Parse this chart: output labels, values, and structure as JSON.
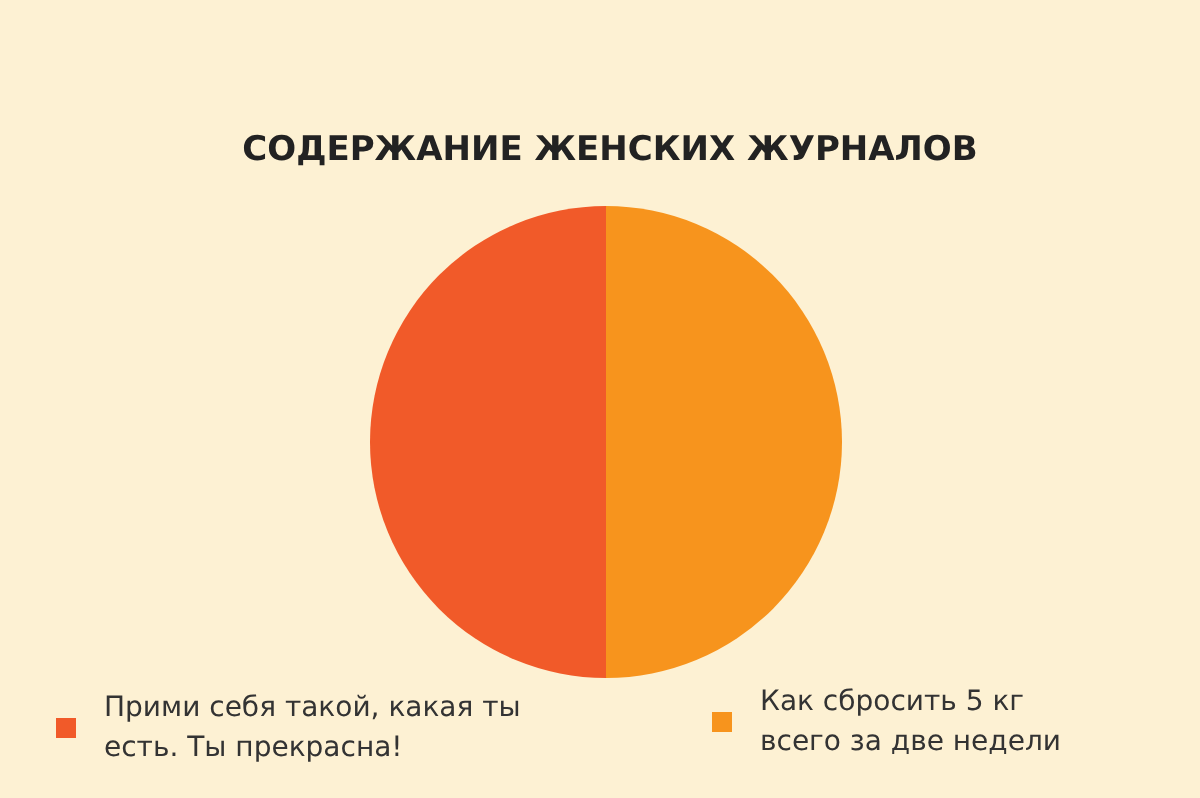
{
  "chart_data": {
    "type": "pie",
    "title": "СОДЕРЖАНИЕ ЖЕНСКИХ ЖУРНАЛОВ",
    "categories": [
      "Прими себя такой, какая ты есть. Ты прекрасна!",
      "Как сбросить 5 кг всего за две недели"
    ],
    "values": [
      50,
      50
    ],
    "colors": [
      "#f15a29",
      "#f7941d"
    ],
    "legend": "bottom"
  }
}
